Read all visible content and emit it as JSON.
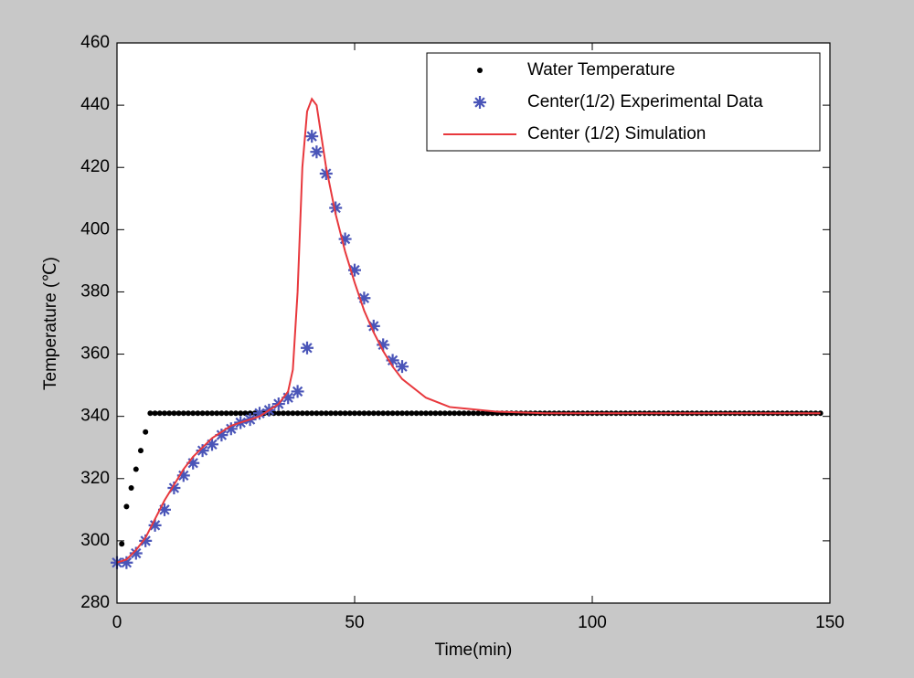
{
  "chart_data": {
    "type": "line",
    "xlabel": "Time(min)",
    "ylabel": "Temperature (℃)",
    "xlim": [
      0,
      150
    ],
    "xticks": [
      0,
      50,
      100,
      150
    ],
    "ylim": [
      280,
      460
    ],
    "yticks": [
      280,
      300,
      320,
      340,
      360,
      380,
      400,
      420,
      440,
      460
    ],
    "legend": "upper right",
    "grid": false,
    "series": [
      {
        "name": "Water Temperature",
        "color": "#000000",
        "marker": "dot",
        "x": [
          1,
          2,
          3,
          4,
          5,
          6,
          7,
          8,
          9,
          10,
          11,
          12,
          13,
          14,
          15,
          16,
          17,
          18,
          19,
          20,
          21,
          22,
          23,
          24,
          25,
          26,
          27,
          28,
          29,
          30,
          31,
          32,
          33,
          34,
          35,
          36,
          37,
          38,
          39,
          40,
          41,
          42,
          43,
          44,
          45,
          46,
          47,
          48,
          49,
          50,
          51,
          52,
          53,
          54,
          55,
          56,
          57,
          58,
          59,
          60,
          61,
          62,
          63,
          64,
          65,
          66,
          67,
          68,
          69,
          70,
          71,
          72,
          73,
          74,
          75,
          76,
          77,
          78,
          79,
          80,
          81,
          82,
          83,
          84,
          85,
          86,
          87,
          88,
          89,
          90,
          91,
          92,
          93,
          94,
          95,
          96,
          97,
          98,
          99,
          100,
          101,
          102,
          103,
          104,
          105,
          106,
          107,
          108,
          109,
          110,
          111,
          112,
          113,
          114,
          115,
          116,
          117,
          118,
          119,
          120,
          121,
          122,
          123,
          124,
          125,
          126,
          127,
          128,
          129,
          130,
          131,
          132,
          133,
          134,
          135,
          136,
          137,
          138,
          139,
          140,
          141,
          142,
          143,
          144,
          145,
          146,
          147,
          148
        ],
        "values": [
          299,
          311,
          317,
          323,
          329,
          335,
          341,
          341,
          341,
          341,
          341,
          341,
          341,
          341,
          341,
          341,
          341,
          341,
          341,
          341,
          341,
          341,
          341,
          341,
          341,
          341,
          341,
          341,
          341,
          341,
          341,
          341,
          341,
          341,
          341,
          341,
          341,
          341,
          341,
          341,
          341,
          341,
          341,
          341,
          341,
          341,
          341,
          341,
          341,
          341,
          341,
          341,
          341,
          341,
          341,
          341,
          341,
          341,
          341,
          341,
          341,
          341,
          341,
          341,
          341,
          341,
          341,
          341,
          341,
          341,
          341,
          341,
          341,
          341,
          341,
          341,
          341,
          341,
          341,
          341,
          341,
          341,
          341,
          341,
          341,
          341,
          341,
          341,
          341,
          341,
          341,
          341,
          341,
          341,
          341,
          341,
          341,
          341,
          341,
          341,
          341,
          341,
          341,
          341,
          341,
          341,
          341,
          341,
          341,
          341,
          341,
          341,
          341,
          341,
          341,
          341,
          341,
          341,
          341,
          341,
          341,
          341,
          341,
          341,
          341,
          341,
          341,
          341,
          341,
          341,
          341,
          341,
          341,
          341,
          341,
          341,
          341,
          341,
          341,
          341,
          341,
          341,
          341,
          341,
          341,
          341,
          341,
          341
        ]
      },
      {
        "name": "Center(1/2) Experimental Data",
        "color": "#4a55b8",
        "marker": "asterisk",
        "x": [
          0,
          2,
          4,
          6,
          8,
          10,
          12,
          14,
          16,
          18,
          20,
          22,
          24,
          26,
          28,
          30,
          32,
          34,
          36,
          38,
          40,
          41,
          42,
          44,
          46,
          48,
          50,
          52,
          54,
          56,
          58,
          60
        ],
        "values": [
          293,
          293,
          296,
          300,
          305,
          310,
          317,
          321,
          325,
          329,
          331,
          334,
          336,
          338,
          339,
          341,
          342,
          344,
          346,
          348,
          362,
          430,
          425,
          418,
          407,
          397,
          387,
          378,
          369,
          363,
          358,
          356
        ]
      },
      {
        "name": "Center (1/2) Simulation",
        "color": "#e8383d",
        "marker": "line",
        "x": [
          0,
          2,
          4,
          6,
          8,
          10,
          12,
          14,
          16,
          18,
          20,
          22,
          24,
          26,
          28,
          30,
          32,
          34,
          36,
          37,
          38,
          39,
          40,
          41,
          42,
          43,
          44,
          46,
          48,
          50,
          52,
          54,
          56,
          58,
          60,
          65,
          70,
          80,
          90,
          100,
          120,
          148
        ],
        "values": [
          293,
          294,
          297,
          301,
          307,
          313,
          318,
          323,
          327,
          330,
          333,
          335,
          337,
          338,
          339,
          340,
          342,
          344,
          348,
          355,
          380,
          420,
          438,
          442,
          440,
          430,
          420,
          405,
          393,
          383,
          374,
          367,
          361,
          356,
          352,
          346,
          343,
          341.5,
          341,
          341,
          341,
          341
        ]
      }
    ]
  }
}
